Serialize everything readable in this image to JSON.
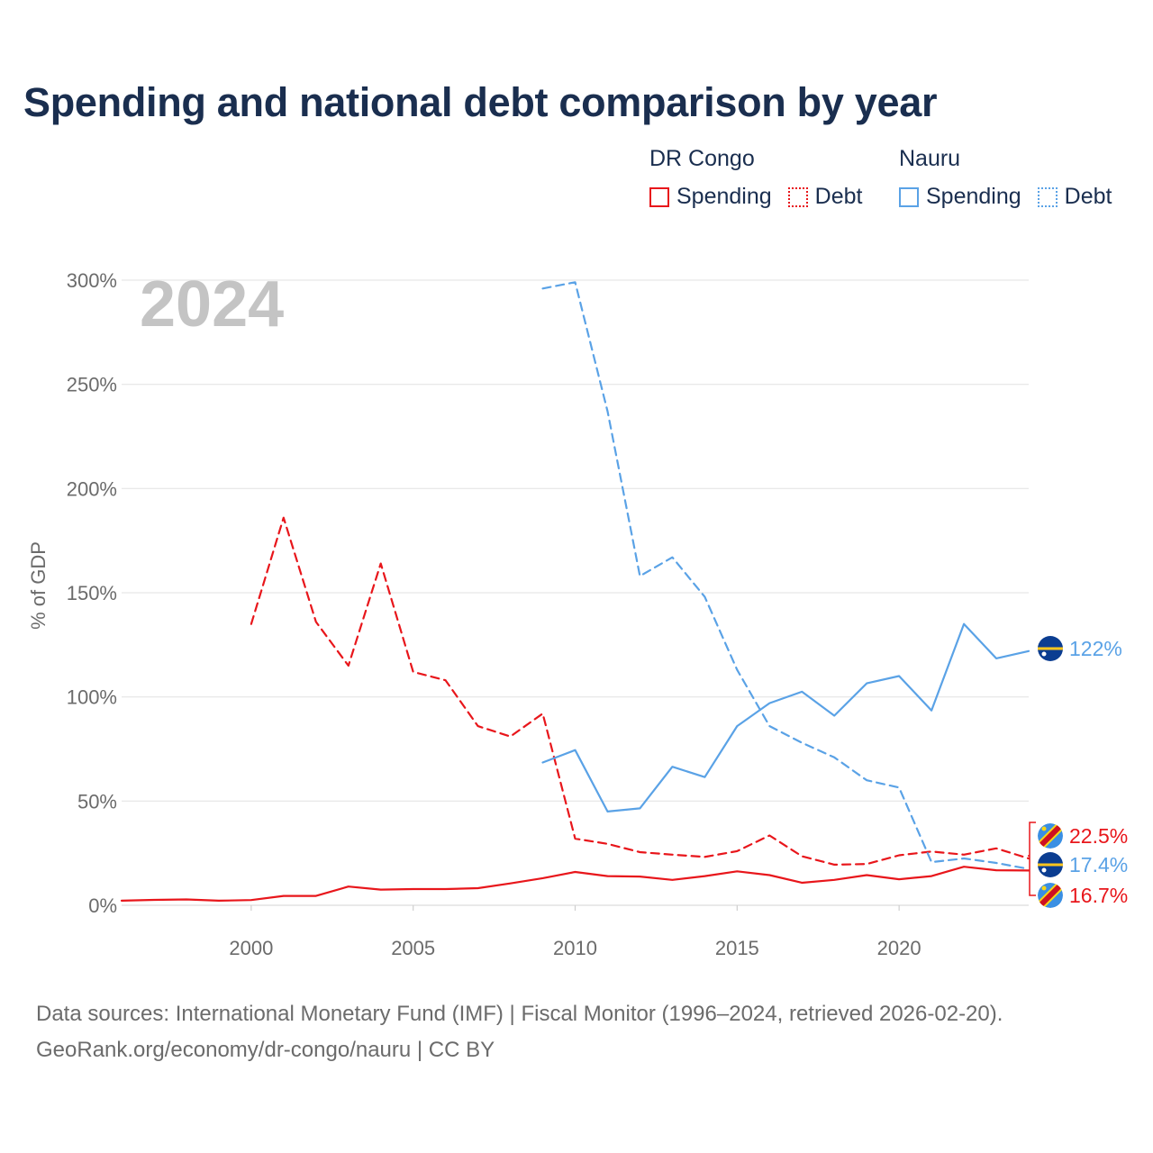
{
  "title": "Spending and national debt comparison by year",
  "legend": {
    "groups": [
      {
        "name": "DR Congo",
        "items": [
          {
            "label": "Spending",
            "style": "solid",
            "color": "#e8161b"
          },
          {
            "label": "Debt",
            "style": "dotted",
            "color": "#e8161b"
          }
        ]
      },
      {
        "name": "Nauru",
        "items": [
          {
            "label": "Spending",
            "style": "solid",
            "color": "#5aa2e6"
          },
          {
            "label": "Debt",
            "style": "dotted",
            "color": "#5aa2e6"
          }
        ]
      }
    ]
  },
  "source": {
    "line1": "Data sources: International Monetary Fund (IMF) | Fiscal Monitor (1996–2024, retrieved 2026-02-20).",
    "line2": "GeoRank.org/economy/dr-congo/nauru | CC BY"
  },
  "chart_data": {
    "type": "line",
    "title": "Spending and national debt comparison by year",
    "year_label": "2024",
    "xlabel": "",
    "ylabel": "% of GDP",
    "xlim": [
      1996,
      2024
    ],
    "ylim": [
      0,
      300
    ],
    "x_ticks": [
      2000,
      2005,
      2010,
      2015,
      2020
    ],
    "y_ticks": [
      0,
      50,
      100,
      150,
      200,
      250,
      300
    ],
    "y_tick_labels": [
      "0%",
      "50%",
      "100%",
      "150%",
      "200%",
      "250%",
      "300%"
    ],
    "grid": true,
    "series": [
      {
        "name": "DR Congo Spending",
        "country": "DR Congo",
        "measure": "Spending",
        "color": "#e8161b",
        "dash": "none",
        "x": [
          1996,
          1997,
          1998,
          1999,
          2000,
          2001,
          2002,
          2003,
          2004,
          2005,
          2006,
          2007,
          2008,
          2009,
          2010,
          2011,
          2012,
          2013,
          2014,
          2015,
          2016,
          2017,
          2018,
          2019,
          2020,
          2021,
          2022,
          2023,
          2024
        ],
        "values": [
          2.2,
          2.6,
          2.8,
          2.2,
          2.5,
          4.5,
          4.5,
          9,
          7.5,
          7.8,
          7.8,
          8.2,
          10.5,
          13,
          16,
          14,
          13.8,
          12.2,
          14,
          16.3,
          14.5,
          10.8,
          12.2,
          14.5,
          12.5,
          14,
          18.5,
          16.8,
          16.7
        ],
        "end_label": "16.7%"
      },
      {
        "name": "DR Congo Debt",
        "country": "DR Congo",
        "measure": "Debt",
        "color": "#e8161b",
        "dash": "dashed",
        "x": [
          2000,
          2001,
          2002,
          2003,
          2004,
          2005,
          2006,
          2007,
          2008,
          2009,
          2010,
          2011,
          2012,
          2013,
          2014,
          2015,
          2016,
          2017,
          2018,
          2019,
          2020,
          2021,
          2022,
          2023,
          2024
        ],
        "values": [
          135,
          186,
          136,
          115,
          164,
          112,
          108,
          86,
          81,
          92,
          32,
          29.5,
          25.5,
          24.3,
          23.2,
          26,
          33.5,
          23.5,
          19.5,
          19.8,
          24,
          25.8,
          24.3,
          27.3,
          22.5
        ],
        "end_label": "22.5%"
      },
      {
        "name": "Nauru Spending",
        "country": "Nauru",
        "measure": "Spending",
        "color": "#5aa2e6",
        "dash": "none",
        "x": [
          2009,
          2010,
          2011,
          2012,
          2013,
          2014,
          2015,
          2016,
          2017,
          2018,
          2019,
          2020,
          2021,
          2022,
          2023,
          2024
        ],
        "values": [
          68.5,
          74.5,
          45,
          46.5,
          66.5,
          61.5,
          86,
          97,
          102.5,
          91,
          106.5,
          110,
          93.5,
          135,
          118.5,
          122
        ],
        "end_label": "122%"
      },
      {
        "name": "Nauru Debt",
        "country": "Nauru",
        "measure": "Debt",
        "color": "#5aa2e6",
        "dash": "dashed",
        "x": [
          2009,
          2010,
          2011,
          2012,
          2013,
          2014,
          2015,
          2016,
          2017,
          2018,
          2019,
          2020,
          2021,
          2022,
          2023,
          2024
        ],
        "values": [
          296,
          299,
          237,
          158,
          167,
          148,
          113,
          86,
          78,
          71,
          60,
          56.5,
          20.7,
          22.5,
          20.3,
          17.4
        ],
        "end_label": "17.4%"
      }
    ]
  }
}
